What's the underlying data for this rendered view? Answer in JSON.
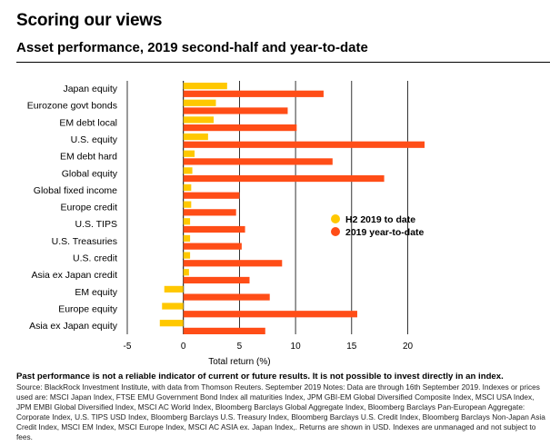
{
  "title": "Scoring our views",
  "subtitle": "Asset performance, 2019 second-half and year-to-date",
  "footer": {
    "disclaimer": "Past performance is not a reliable indicator of current or future results. It is not possible to invest directly in an index.",
    "source": "Source: BlackRock Investment Institute, with data from Thomson Reuters. September 2019 Notes: Data are through 16th September 2019. Indexes or prices used are: MSCI Japan Index, FTSE EMU Government Bond Index all maturities Index, JPM GBI-EM Global Diversified Composite Index, MSCI USA Index, JPM EMBI Global Diversified Index, MSCI AC World Index, Bloomberg Barclays Global Aggregate Index, Bloomberg Barclays Pan-European Aggregate: Corporate Index, U.S. TIPS USD Index, Bloomberg Barclays U.S. Treasury Index, Bloomberg Barclays U.S. Credit Index, Bloomberg Barclays Non-Japan Asia Credit Index, MSCI EM Index, MSCI Europe Index, MSCI AC ASIA ex. Japan Index,. Returns are shown in USD. Indexes are unmanaged and not subject to fees."
  },
  "chart_data": {
    "type": "bar",
    "orientation": "horizontal",
    "categories": [
      "Japan equity",
      "Eurozone govt bonds",
      "EM debt local",
      "U.S. equity",
      "EM debt hard",
      "Global equity",
      "Global fixed income",
      "Europe credit",
      "U.S. TIPS",
      "U.S. Treasuries",
      "U.S. credit",
      "Asia ex Japan credit",
      "EM equity",
      "Europe equity",
      "Asia ex Japan equity"
    ],
    "series": [
      {
        "name": "H2 2019 to date",
        "color": "#FFC800",
        "values": [
          3.9,
          2.9,
          2.7,
          2.2,
          1.0,
          0.8,
          0.7,
          0.7,
          0.6,
          0.6,
          0.6,
          0.5,
          -1.7,
          -1.9,
          -2.1
        ]
      },
      {
        "name": "2019 year-to-date",
        "color": "#FF4D17",
        "values": [
          12.5,
          9.3,
          10.1,
          21.5,
          13.3,
          17.9,
          5.0,
          4.7,
          5.5,
          5.2,
          8.8,
          5.9,
          7.7,
          15.5,
          7.3
        ]
      }
    ],
    "xlabel": "Total return (%)",
    "xlim": [
      -5,
      22
    ],
    "xticks": [
      -5,
      0,
      5,
      10,
      15,
      20
    ],
    "grid": "vertical",
    "legend_position": "right"
  }
}
